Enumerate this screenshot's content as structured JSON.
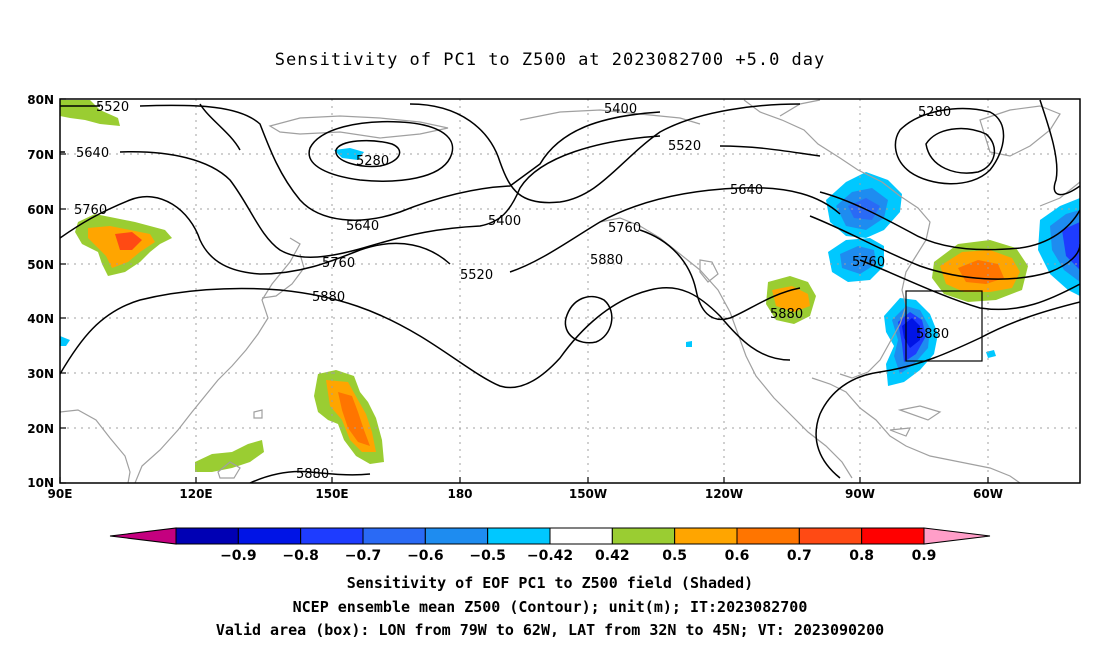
{
  "title": "Sensitivity of PC1 to Z500 at 2023082700 +5.0 day",
  "map": {
    "lat_labels": [
      "80N",
      "70N",
      "60N",
      "50N",
      "40N",
      "30N",
      "20N",
      "10N"
    ],
    "lon_labels": [
      "90E",
      "120E",
      "150E",
      "180",
      "150W",
      "120W",
      "90W",
      "60W"
    ],
    "contour_labels": [
      "5520",
      "5640",
      "5760",
      "5880",
      "5280",
      "5400",
      "5520",
      "5640",
      "5760",
      "5880",
      "5400",
      "5520",
      "5640",
      "5760",
      "5880",
      "5280",
      "5760",
      "5880",
      "5880"
    ],
    "colors": {
      "frame": "#000000",
      "coast": "#a0a0a0",
      "grid": "#a0a0a0"
    }
  },
  "colorbar": {
    "labels": [
      "-0.9",
      "-0.8",
      "-0.7",
      "-0.6",
      "-0.5",
      "-0.42",
      "0.42",
      "0.5",
      "0.6",
      "0.7",
      "0.8",
      "0.9"
    ],
    "colors": [
      "#c4007f",
      "#0000b4",
      "#0014e6",
      "#1e3cff",
      "#2a6af5",
      "#1e8cf0",
      "#00c8ff",
      "#ffffff",
      "#9acd32",
      "#ffa500",
      "#ff7500",
      "#ff4a14",
      "#ff0000",
      "#ff9ec8"
    ]
  },
  "caption": {
    "line1": "Sensitivity of EOF PC1 to Z500 field (Shaded)",
    "line2": "NCEP ensemble mean Z500 (Contour); unit(m); IT:2023082700",
    "line3": "Valid area (box): LON from 79W to 62W, LAT from 32N to 45N; VT: 2023090200"
  }
}
